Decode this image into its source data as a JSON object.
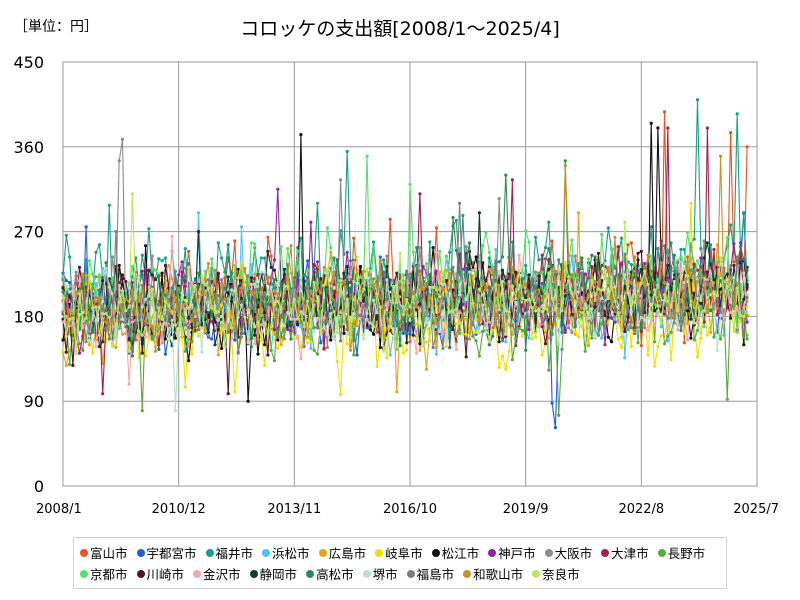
{
  "page": {
    "unit_label": "［単位：円］",
    "title": "コロッケの支出額[2008/1～2025/4]"
  },
  "chart_data": {
    "type": "line",
    "title": "コロッケの支出額[2008/1～2025/4]",
    "unit": "［単位：円］",
    "x_start": "2008/1",
    "x_end": "2025/4",
    "x_ticks": [
      "2008/1",
      "2010/12",
      "2013/11",
      "2016/10",
      "2019/9",
      "2022/8",
      "2025/7"
    ],
    "y_ticks": [
      0,
      90,
      180,
      270,
      360,
      450
    ],
    "ylim": [
      0,
      450
    ],
    "grid": true,
    "legend_position": "bottom",
    "series": [
      {
        "name": "富山市",
        "color": "#e8541a",
        "level": 195,
        "amp": 38,
        "trend": 25,
        "peaks": [
          [
            "2023/3",
            397
          ],
          [
            "2024/11",
            375
          ],
          [
            "2025/4",
            360
          ]
        ]
      },
      {
        "name": "宇都宮市",
        "color": "#1f5fe0",
        "level": 180,
        "amp": 32,
        "trend": 20,
        "peaks": [
          [
            "2008/8",
            275
          ],
          [
            "2020/5",
            88
          ],
          [
            "2020/6",
            62
          ],
          [
            "2025/3",
            290
          ]
        ]
      },
      {
        "name": "福井市",
        "color": "#16a085",
        "level": 210,
        "amp": 40,
        "trend": 20,
        "peaks": [
          [
            "2009/3",
            298
          ],
          [
            "2014/6",
            300
          ],
          [
            "2015/3",
            355
          ],
          [
            "2024/1",
            410
          ],
          [
            "2025/1",
            395
          ]
        ]
      },
      {
        "name": "浜松市",
        "color": "#4fc3f7",
        "level": 185,
        "amp": 33,
        "trend": 15,
        "peaks": [
          [
            "2011/6",
            290
          ],
          [
            "2012/7",
            275
          ]
        ]
      },
      {
        "name": "広島市",
        "color": "#e8a317",
        "level": 180,
        "amp": 33,
        "trend": 20,
        "peaks": [
          [
            "2008/2",
            128
          ],
          [
            "2016/6",
            100
          ],
          [
            "2021/1",
            290
          ]
        ]
      },
      {
        "name": "岐阜市",
        "color": "#f0e000",
        "level": 165,
        "amp": 30,
        "trend": 10,
        "peaks": [
          [
            "2011/2",
            105
          ],
          [
            "2012/5",
            100
          ],
          [
            "2015/1",
            97
          ],
          [
            "2023/11",
            300
          ]
        ]
      },
      {
        "name": "松江市",
        "color": "#111111",
        "level": 180,
        "amp": 35,
        "trend": 25,
        "peaks": [
          [
            "2010/2",
            255
          ],
          [
            "2012/9",
            90
          ],
          [
            "2014/1",
            373
          ],
          [
            "2022/11",
            385
          ],
          [
            "2023/1",
            380
          ],
          [
            "2025/3",
            150
          ]
        ]
      },
      {
        "name": "神戸市",
        "color": "#8e24aa",
        "level": 190,
        "amp": 33,
        "trend": 15,
        "peaks": [
          [
            "2013/6",
            315
          ],
          [
            "2014/4",
            280
          ]
        ]
      },
      {
        "name": "大阪市",
        "color": "#8c8c8c",
        "level": 195,
        "amp": 33,
        "trend": 20,
        "peaks": [
          [
            "2009/6",
            345
          ],
          [
            "2009/7",
            368
          ],
          [
            "2015/1",
            325
          ],
          [
            "2019/1",
            305
          ]
        ]
      },
      {
        "name": "大津市",
        "color": "#a3214c",
        "level": 190,
        "amp": 35,
        "trend": 25,
        "peaks": [
          [
            "2009/1",
            98
          ],
          [
            "2017/1",
            310
          ],
          [
            "2019/5",
            325
          ],
          [
            "2023/4",
            380
          ],
          [
            "2024/4",
            380
          ]
        ]
      },
      {
        "name": "長野市",
        "color": "#5aaa3c",
        "level": 175,
        "amp": 33,
        "trend": 15,
        "peaks": [
          [
            "2010/1",
            80
          ],
          [
            "2020/7",
            75
          ],
          [
            "2024/10",
            92
          ]
        ]
      },
      {
        "name": "京都市",
        "color": "#55e06c",
        "level": 200,
        "amp": 38,
        "trend": 20,
        "peaks": [
          [
            "2015/9",
            350
          ],
          [
            "2016/10",
            320
          ]
        ]
      },
      {
        "name": "川崎市",
        "color": "#5a0f2a",
        "level": 185,
        "amp": 32,
        "trend": 20,
        "peaks": [
          [
            "2012/3",
            98
          ]
        ]
      },
      {
        "name": "金沢市",
        "color": "#f4a7b0",
        "level": 185,
        "amp": 30,
        "trend": 15,
        "peaks": [
          [
            "2009/9",
            108
          ],
          [
            "2010/10",
            265
          ]
        ]
      },
      {
        "name": "静岡市",
        "color": "#0d3b2e",
        "level": 190,
        "amp": 33,
        "trend": 20,
        "peaks": [
          [
            "2011/6",
            270
          ],
          [
            "2018/7",
            290
          ]
        ]
      },
      {
        "name": "高松市",
        "color": "#2e8b57",
        "level": 195,
        "amp": 35,
        "trend": 20,
        "peaks": [
          [
            "2017/11",
            285
          ],
          [
            "2019/3",
            330
          ],
          [
            "2020/9",
            345
          ]
        ]
      },
      {
        "name": "堺市",
        "color": "#b6e3c7",
        "level": 185,
        "amp": 32,
        "trend": 15,
        "peaks": [
          [
            "2008/5",
            140
          ],
          [
            "2010/11",
            80
          ]
        ]
      },
      {
        "name": "福島市",
        "color": "#7d7d7d",
        "level": 185,
        "amp": 33,
        "trend": 15,
        "peaks": [
          [
            "2009/5",
            270
          ],
          [
            "2018/1",
            300
          ]
        ]
      },
      {
        "name": "和歌山市",
        "color": "#c9902a",
        "level": 190,
        "amp": 33,
        "trend": 25,
        "peaks": [
          [
            "2020/9",
            340
          ],
          [
            "2024/8",
            350
          ]
        ]
      },
      {
        "name": "奈良市",
        "color": "#bde85c",
        "level": 185,
        "amp": 32,
        "trend": 15,
        "peaks": [
          [
            "2009/10",
            310
          ],
          [
            "2022/3",
            280
          ]
        ]
      }
    ]
  }
}
